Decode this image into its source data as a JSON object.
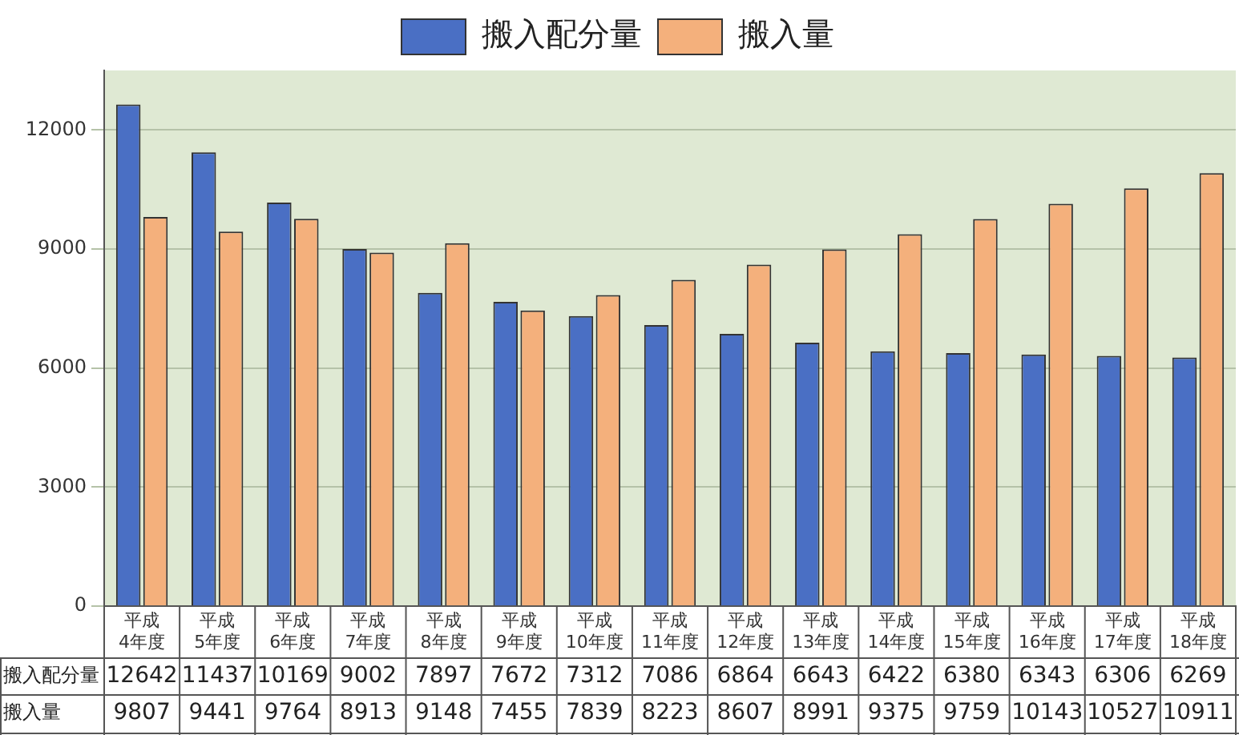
{
  "chart_data": {
    "type": "bar",
    "categories": [
      "平成\n4年度",
      "平成\n5年度",
      "平成\n6年度",
      "平成\n7年度",
      "平成\n8年度",
      "平成\n9年度",
      "平成\n10年度",
      "平成\n11年度",
      "平成\n12年度",
      "平成\n13年度",
      "平成\n14年度",
      "平成\n15年度",
      "平成\n16年度",
      "平成\n17年度",
      "平成\n18年度"
    ],
    "series": [
      {
        "name": "搬入配分量",
        "color": "#4a6fc4",
        "values": [
          12642,
          11437,
          10169,
          9002,
          7897,
          7672,
          7312,
          7086,
          6864,
          6643,
          6422,
          6380,
          6343,
          6306,
          6269
        ]
      },
      {
        "name": "搬入量",
        "color": "#f4b07c",
        "values": [
          9807,
          9441,
          9764,
          8913,
          9148,
          7455,
          7839,
          8223,
          8607,
          8991,
          9375,
          9759,
          10143,
          10527,
          10911
        ]
      }
    ],
    "ylim": [
      0,
      13500
    ],
    "yticks": [
      0,
      3000,
      6000,
      9000,
      12000
    ],
    "grid": "y",
    "legend": "top",
    "data_labels": true
  }
}
